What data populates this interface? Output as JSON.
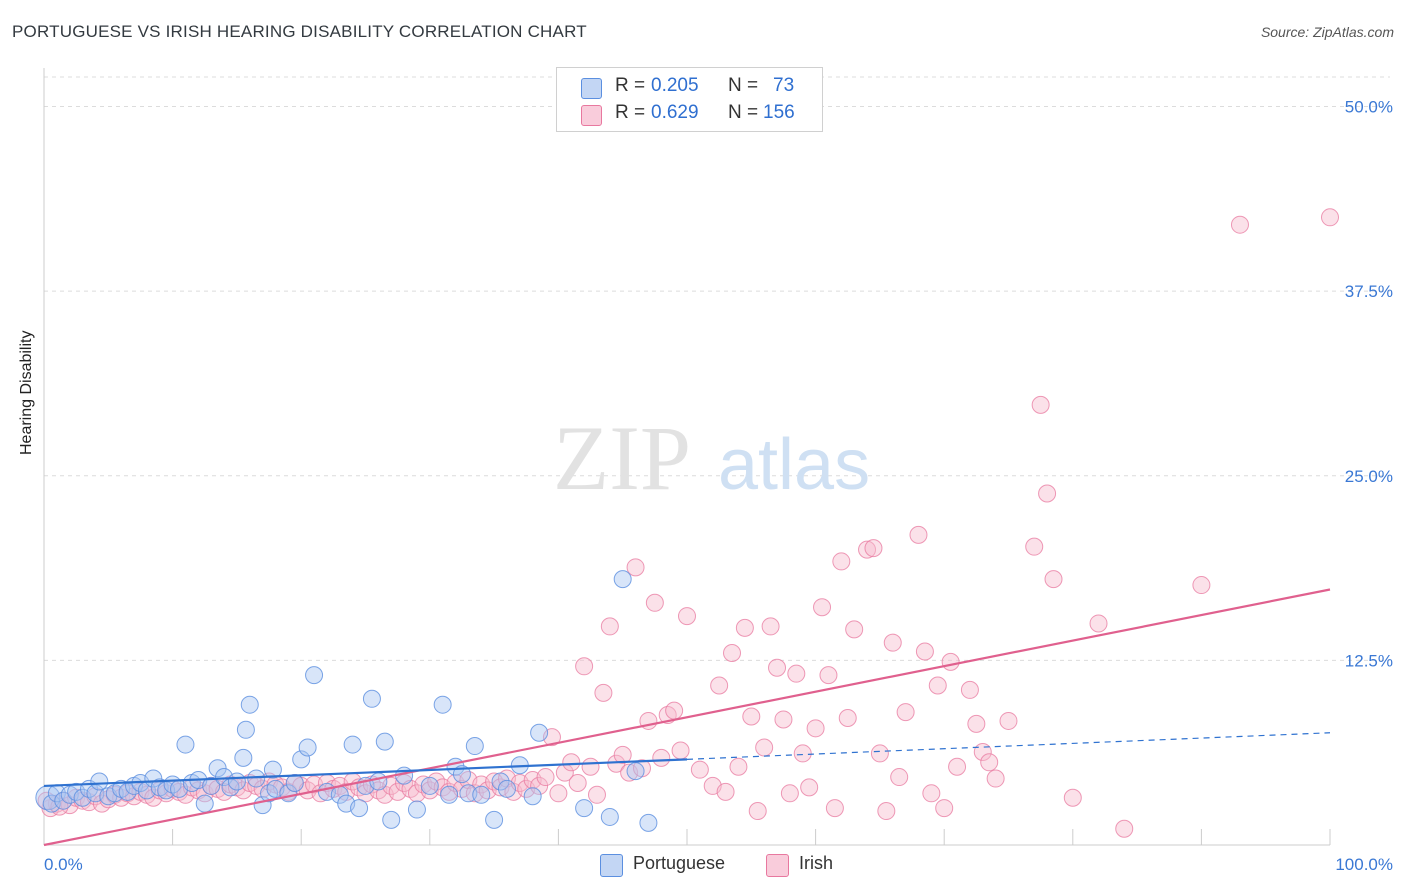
{
  "header": {
    "title": "PORTUGUESE VS IRISH HEARING DISABILITY CORRELATION CHART",
    "source": "Source: ZipAtlas.com"
  },
  "legend_top": {
    "rows": [
      {
        "r_label": "R =",
        "r_value": "0.205",
        "n_label": "N =",
        "n_value": "73"
      },
      {
        "r_label": "R =",
        "r_value": "0.629",
        "n_label": "N =",
        "n_value": "156"
      }
    ]
  },
  "watermark": {
    "zip": "ZIP",
    "atlas": "atlas"
  },
  "colors": {
    "portuguese": "#5b8fe0",
    "portuguese_fill": "#a9c6f2",
    "irish": "#e8789f",
    "irish_fill": "#f6bccf",
    "axis_text": "#3a78d4",
    "grid": "#dcdcdc"
  },
  "chart_data": {
    "type": "scatter",
    "title": "PORTUGUESE VS IRISH HEARING DISABILITY CORRELATION CHART",
    "xlabel": "",
    "ylabel": "Hearing Disability",
    "xlim": [
      0,
      100
    ],
    "ylim": [
      0,
      52
    ],
    "x_tick_labels": [
      "0.0%",
      "100.0%"
    ],
    "y_ticks": [
      12.5,
      25.0,
      37.5,
      50.0
    ],
    "y_tick_labels": [
      "12.5%",
      "25.0%",
      "37.5%",
      "50.0%"
    ],
    "grid": true,
    "legend_placement": "bottom-center",
    "series": [
      {
        "name": "Portuguese",
        "r": 0.205,
        "n": 73,
        "trend_solid": [
          [
            0,
            4.0
          ],
          [
            50,
            5.8
          ]
        ],
        "trend_dashed": [
          [
            50,
            5.8
          ],
          [
            100,
            7.6
          ]
        ],
        "points": [
          [
            0.3,
            3.2
          ],
          [
            0.6,
            2.8
          ],
          [
            1,
            3.5
          ],
          [
            1.5,
            3.0
          ],
          [
            2,
            3.4
          ],
          [
            2.5,
            3.6
          ],
          [
            3,
            3.2
          ],
          [
            3.5,
            3.8
          ],
          [
            4,
            3.5
          ],
          [
            4.3,
            4.3
          ],
          [
            5,
            3.3
          ],
          [
            5.5,
            3.5
          ],
          [
            6,
            3.8
          ],
          [
            6.5,
            3.6
          ],
          [
            7,
            4.0
          ],
          [
            7.5,
            4.2
          ],
          [
            8,
            3.7
          ],
          [
            8.5,
            4.5
          ],
          [
            9,
            3.9
          ],
          [
            9.5,
            3.7
          ],
          [
            10,
            4.1
          ],
          [
            10.5,
            3.8
          ],
          [
            11,
            6.8
          ],
          [
            11.5,
            4.2
          ],
          [
            12,
            4.4
          ],
          [
            12.5,
            2.8
          ],
          [
            13,
            4.0
          ],
          [
            13.5,
            5.2
          ],
          [
            14,
            4.6
          ],
          [
            14.5,
            3.9
          ],
          [
            15,
            4.3
          ],
          [
            15.5,
            5.9
          ],
          [
            15.7,
            7.8
          ],
          [
            16,
            9.5
          ],
          [
            16.5,
            4.5
          ],
          [
            17,
            2.7
          ],
          [
            17.5,
            3.5
          ],
          [
            17.8,
            5.1
          ],
          [
            18,
            3.8
          ],
          [
            19,
            3.5
          ],
          [
            19.5,
            4.2
          ],
          [
            20,
            5.8
          ],
          [
            20.5,
            6.6
          ],
          [
            21,
            11.5
          ],
          [
            22,
            3.6
          ],
          [
            23,
            3.4
          ],
          [
            23.5,
            2.8
          ],
          [
            24,
            6.8
          ],
          [
            24.5,
            2.5
          ],
          [
            25,
            4.0
          ],
          [
            25.5,
            9.9
          ],
          [
            26,
            4.3
          ],
          [
            26.5,
            7.0
          ],
          [
            27,
            1.7
          ],
          [
            28,
            4.7
          ],
          [
            29,
            2.4
          ],
          [
            30,
            4.0
          ],
          [
            31,
            9.5
          ],
          [
            31.5,
            3.4
          ],
          [
            32,
            5.3
          ],
          [
            32.5,
            4.8
          ],
          [
            33,
            3.5
          ],
          [
            33.5,
            6.7
          ],
          [
            34,
            3.4
          ],
          [
            35,
            1.7
          ],
          [
            35.5,
            4.3
          ],
          [
            36,
            3.8
          ],
          [
            37,
            5.4
          ],
          [
            38,
            3.3
          ],
          [
            38.5,
            7.6
          ],
          [
            42,
            2.5
          ],
          [
            44,
            1.9
          ],
          [
            45,
            18.0
          ],
          [
            46,
            5.0
          ],
          [
            47,
            1.5
          ]
        ]
      },
      {
        "name": "Irish",
        "r": 0.629,
        "n": 156,
        "trend_solid": [
          [
            0,
            0.0
          ],
          [
            100,
            17.3
          ]
        ],
        "points": [
          [
            0.5,
            2.5
          ],
          [
            1,
            2.8
          ],
          [
            1.5,
            3.0
          ],
          [
            2,
            2.7
          ],
          [
            2.5,
            3.2
          ],
          [
            3,
            3.0
          ],
          [
            3.5,
            2.9
          ],
          [
            4,
            3.3
          ],
          [
            4.5,
            2.8
          ],
          [
            5,
            3.1
          ],
          [
            5.5,
            3.4
          ],
          [
            6,
            3.2
          ],
          [
            6.5,
            3.5
          ],
          [
            7,
            3.3
          ],
          [
            7.5,
            3.6
          ],
          [
            8,
            3.4
          ],
          [
            8.5,
            3.2
          ],
          [
            9,
            3.7
          ],
          [
            9.5,
            3.5
          ],
          [
            10,
            3.8
          ],
          [
            10.5,
            3.6
          ],
          [
            11,
            3.4
          ],
          [
            11.5,
            3.9
          ],
          [
            12,
            3.7
          ],
          [
            12.5,
            3.5
          ],
          [
            13,
            4.0
          ],
          [
            13.5,
            3.8
          ],
          [
            14,
            3.6
          ],
          [
            14.5,
            4.1
          ],
          [
            15,
            3.9
          ],
          [
            15.5,
            3.7
          ],
          [
            16,
            4.2
          ],
          [
            16.5,
            4.0
          ],
          [
            17,
            3.8
          ],
          [
            17.5,
            4.3
          ],
          [
            18,
            4.1
          ],
          [
            18.5,
            3.9
          ],
          [
            19,
            3.6
          ],
          [
            19.5,
            4.2
          ],
          [
            20,
            4.0
          ],
          [
            20.5,
            3.7
          ],
          [
            21,
            4.1
          ],
          [
            21.5,
            3.5
          ],
          [
            22,
            4.2
          ],
          [
            22.5,
            3.8
          ],
          [
            23,
            4.0
          ],
          [
            23.5,
            3.6
          ],
          [
            24,
            4.3
          ],
          [
            24.5,
            3.9
          ],
          [
            25,
            3.5
          ],
          [
            25.5,
            4.1
          ],
          [
            26,
            3.7
          ],
          [
            26.5,
            3.4
          ],
          [
            27,
            4.0
          ],
          [
            27.5,
            3.6
          ],
          [
            28,
            4.2
          ],
          [
            28.5,
            3.8
          ],
          [
            29,
            3.5
          ],
          [
            29.5,
            4.1
          ],
          [
            30,
            3.7
          ],
          [
            30.5,
            4.3
          ],
          [
            31,
            3.9
          ],
          [
            31.5,
            3.6
          ],
          [
            32,
            4.2
          ],
          [
            32.5,
            3.8
          ],
          [
            33,
            4.4
          ],
          [
            33.5,
            3.5
          ],
          [
            34,
            4.1
          ],
          [
            34.5,
            3.7
          ],
          [
            35,
            4.3
          ],
          [
            35.5,
            3.9
          ],
          [
            36,
            4.5
          ],
          [
            36.5,
            3.6
          ],
          [
            37,
            4.2
          ],
          [
            37.5,
            3.8
          ],
          [
            38,
            4.4
          ],
          [
            38.5,
            4.0
          ],
          [
            39,
            4.6
          ],
          [
            39.5,
            7.3
          ],
          [
            40,
            3.5
          ],
          [
            40.5,
            4.9
          ],
          [
            41,
            5.6
          ],
          [
            41.5,
            4.2
          ],
          [
            42,
            12.1
          ],
          [
            42.5,
            5.3
          ],
          [
            43,
            3.4
          ],
          [
            43.5,
            10.3
          ],
          [
            44,
            14.8
          ],
          [
            44.5,
            5.5
          ],
          [
            45,
            6.1
          ],
          [
            45.5,
            4.9
          ],
          [
            46,
            18.8
          ],
          [
            46.5,
            5.2
          ],
          [
            47,
            8.4
          ],
          [
            47.5,
            16.4
          ],
          [
            48,
            5.9
          ],
          [
            48.5,
            8.8
          ],
          [
            49,
            9.1
          ],
          [
            49.5,
            6.4
          ],
          [
            50,
            15.5
          ],
          [
            51,
            5.1
          ],
          [
            52,
            4.0
          ],
          [
            52.5,
            10.8
          ],
          [
            53,
            3.6
          ],
          [
            53.5,
            13.0
          ],
          [
            54,
            5.3
          ],
          [
            54.5,
            14.7
          ],
          [
            55,
            8.7
          ],
          [
            55.5,
            2.3
          ],
          [
            56,
            6.6
          ],
          [
            56.5,
            14.8
          ],
          [
            57,
            12.0
          ],
          [
            57.5,
            8.5
          ],
          [
            58,
            3.5
          ],
          [
            58.5,
            11.6
          ],
          [
            59,
            6.2
          ],
          [
            59.5,
            3.9
          ],
          [
            60,
            7.9
          ],
          [
            60.5,
            16.1
          ],
          [
            61,
            11.5
          ],
          [
            61.5,
            2.5
          ],
          [
            62,
            19.2
          ],
          [
            62.5,
            8.6
          ],
          [
            63,
            14.6
          ],
          [
            64,
            20.0
          ],
          [
            64.5,
            20.1
          ],
          [
            65,
            6.2
          ],
          [
            65.5,
            2.3
          ],
          [
            66,
            13.7
          ],
          [
            66.5,
            4.6
          ],
          [
            67,
            9.0
          ],
          [
            68,
            21.0
          ],
          [
            68.5,
            13.1
          ],
          [
            69,
            3.5
          ],
          [
            69.5,
            10.8
          ],
          [
            70,
            2.5
          ],
          [
            70.5,
            12.4
          ],
          [
            71,
            5.3
          ],
          [
            72,
            10.5
          ],
          [
            72.5,
            8.2
          ],
          [
            73,
            6.3
          ],
          [
            73.5,
            5.6
          ],
          [
            74,
            4.5
          ],
          [
            75,
            8.4
          ],
          [
            77,
            20.2
          ],
          [
            77.5,
            29.8
          ],
          [
            78,
            23.8
          ],
          [
            78.5,
            18.0
          ],
          [
            80,
            3.2
          ],
          [
            82,
            15.0
          ],
          [
            84,
            1.1
          ],
          [
            90,
            17.6
          ],
          [
            93,
            42.0
          ],
          [
            100,
            42.5
          ],
          [
            0.2,
            3.0
          ],
          [
            1.2,
            2.6
          ]
        ]
      }
    ]
  }
}
